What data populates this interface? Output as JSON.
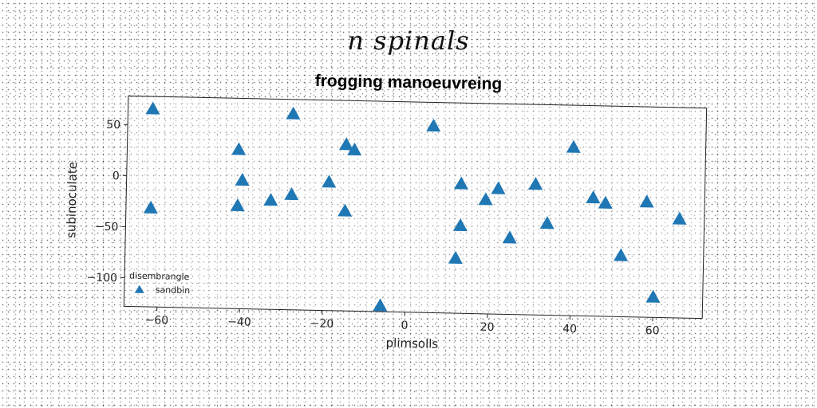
{
  "chart_data": {
    "type": "scatter",
    "suptitle": "n spinals",
    "title": "frogging manoeuvreing",
    "xlabel": "plimsolls",
    "ylabel": "subinoculate",
    "xlim": [
      -68,
      72
    ],
    "ylim": [
      -128,
      78
    ],
    "xticks": [
      -60,
      -40,
      -20,
      0,
      20,
      40,
      60
    ],
    "yticks": [
      -100,
      -50,
      0,
      50
    ],
    "grid": false,
    "legend": {
      "title": "disembrangle",
      "placement": "lower-left"
    },
    "series": [
      {
        "name": "sandbin",
        "marker": "triangle",
        "color": "#1f77b4",
        "points": [
          [
            -62,
            66
          ],
          [
            -62,
            -31
          ],
          [
            -41,
            28
          ],
          [
            -40,
            -2
          ],
          [
            -41,
            -27
          ],
          [
            -33,
            -21
          ],
          [
            -28,
            64
          ],
          [
            -28,
            -15
          ],
          [
            -19,
            -2
          ],
          [
            -15,
            35
          ],
          [
            -13,
            30
          ],
          [
            -15,
            -30
          ],
          [
            -6,
            -122
          ],
          [
            6,
            55
          ],
          [
            13,
            -1
          ],
          [
            13,
            -42
          ],
          [
            12,
            -74
          ],
          [
            19,
            -16
          ],
          [
            22,
            -5
          ],
          [
            25,
            -53
          ],
          [
            31,
            0
          ],
          [
            34,
            -38
          ],
          [
            40,
            37
          ],
          [
            45,
            -12
          ],
          [
            48,
            -17
          ],
          [
            52,
            -68
          ],
          [
            58,
            -15
          ],
          [
            60,
            -108
          ],
          [
            66,
            -31
          ]
        ]
      }
    ]
  }
}
